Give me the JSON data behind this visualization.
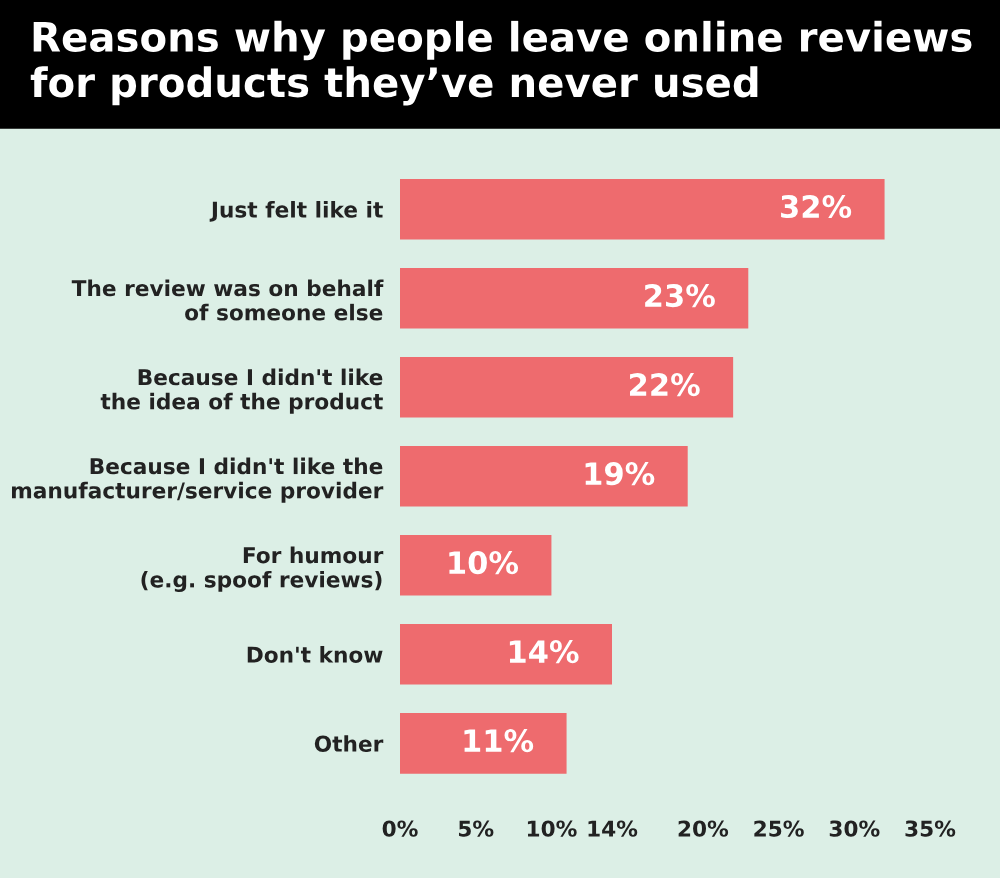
{
  "chart_data": {
    "type": "bar",
    "orientation": "horizontal",
    "title": "Reasons why people leave online reviews\nfor products they’ve never used",
    "categories": [
      "Just felt like it",
      "The review was on behalf\nof someone else",
      "Because I didn't like\nthe idea of the product",
      "Because I didn't like the\nmanufacturer/service provider",
      "For humour\n(e.g. spoof reviews)",
      "Don't know",
      "Other"
    ],
    "values": [
      32,
      23,
      22,
      19,
      10,
      14,
      11
    ],
    "value_labels": [
      "32%",
      "23%",
      "22%",
      "19%",
      "10%",
      "14%",
      "11%"
    ],
    "color": "#ee6b6e",
    "xlim": [
      0,
      35
    ],
    "xticks": [
      {
        "value": 0,
        "label": "0%"
      },
      {
        "value": 5,
        "label": "5%"
      },
      {
        "value": 10,
        "label": "10%"
      },
      {
        "value": 14,
        "label": "14%"
      },
      {
        "value": 20,
        "label": "20%"
      },
      {
        "value": 25,
        "label": "25%"
      },
      {
        "value": 30,
        "label": "30%"
      },
      {
        "value": 35,
        "label": "35%"
      }
    ],
    "grid": false,
    "legend": false
  }
}
